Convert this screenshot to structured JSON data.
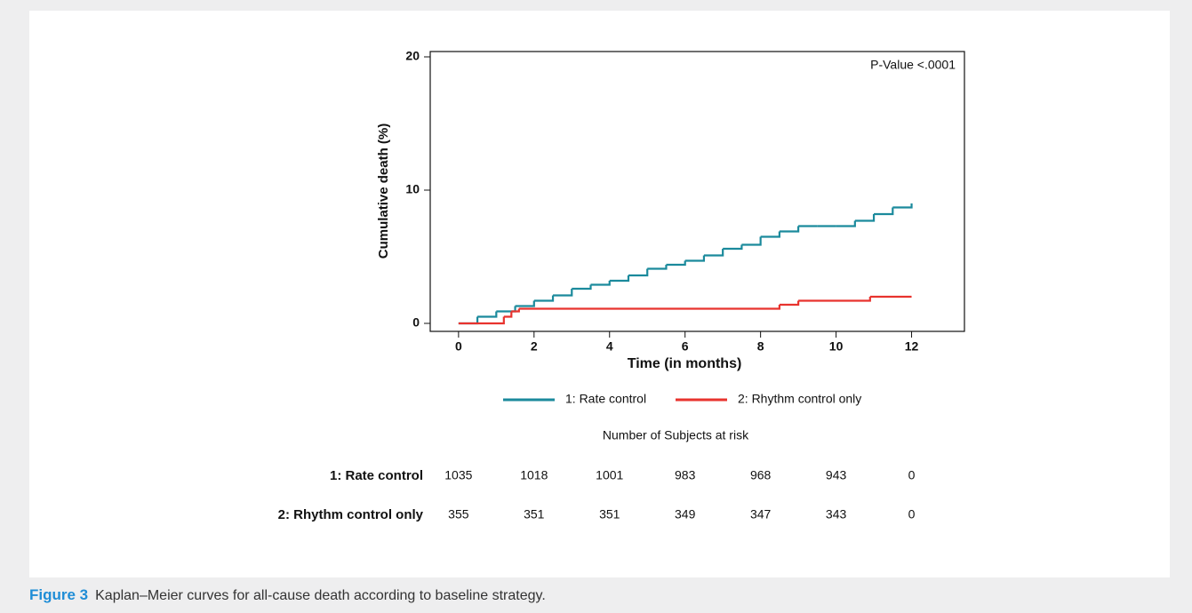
{
  "chart_data": {
    "type": "step",
    "ylabel": "Cumulative death (%)",
    "xlabel": "Time (in months)",
    "annotation": "P-Value <.0001",
    "xlim": [
      -0.75,
      13.4
    ],
    "ylim": [
      -0.6,
      20.4
    ],
    "xticks": [
      0,
      2,
      4,
      6,
      8,
      10,
      12
    ],
    "yticks": [
      0,
      10,
      20
    ],
    "series": [
      {
        "name": "1: Rate control",
        "color": "#1b8a9c",
        "x": [
          0,
          0.5,
          1,
          1.5,
          2,
          2.5,
          3,
          3.5,
          4,
          4.5,
          5,
          5.5,
          6,
          6.5,
          7,
          7.5,
          8,
          8.5,
          9,
          9.5,
          10,
          10.5,
          11,
          11.5,
          12
        ],
        "values": [
          0,
          0.5,
          0.9,
          1.3,
          1.7,
          2.1,
          2.6,
          2.9,
          3.2,
          3.6,
          4.1,
          4.4,
          4.7,
          5.1,
          5.6,
          5.9,
          6.5,
          6.9,
          7.3,
          7.3,
          7.3,
          7.7,
          8.2,
          8.7,
          9.0
        ]
      },
      {
        "name": "2: Rhythm control only",
        "color": "#e8332e",
        "x": [
          0,
          1.2,
          1.4,
          1.6,
          8.5,
          9,
          10.9,
          12
        ],
        "values": [
          0,
          0.5,
          0.9,
          1.1,
          1.4,
          1.7,
          2.0,
          2.0
        ]
      }
    ]
  },
  "risk_table": {
    "title": "Number of Subjects at risk",
    "rows": [
      {
        "name": "1: Rate control",
        "values": [
          1035,
          1018,
          1001,
          983,
          968,
          943,
          0
        ]
      },
      {
        "name": "2: Rhythm control only",
        "values": [
          355,
          351,
          351,
          349,
          347,
          343,
          0
        ]
      }
    ]
  },
  "caption": {
    "label": "Figure 3",
    "text": "Kaplan–Meier curves for all-cause death according to baseline strategy."
  }
}
